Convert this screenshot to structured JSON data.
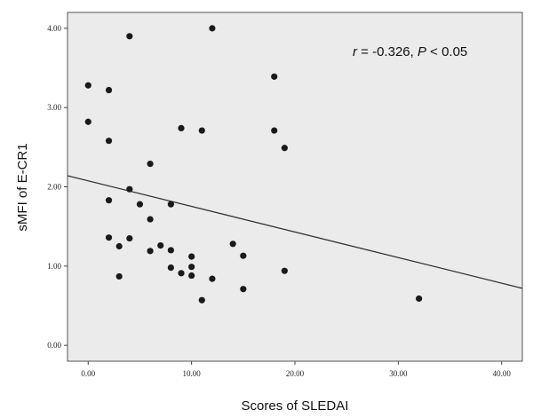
{
  "chart_data": {
    "type": "scatter",
    "xlabel": "Scores of SLEDAI",
    "ylabel": "sMFI of E-CR1",
    "xlim": [
      -2,
      42
    ],
    "ylim": [
      -0.2,
      4.2
    ],
    "xticks": [
      0,
      10,
      20,
      30,
      40
    ],
    "yticks": [
      0,
      1,
      2,
      3,
      4
    ],
    "xtick_labels": [
      "0.00",
      "10.00",
      "20.00",
      "30.00",
      "40.00"
    ],
    "ytick_labels": [
      "0.00",
      "1.00",
      "2.00",
      "3.00",
      "4.00"
    ],
    "grid": false,
    "plot_background": "#ebebeb",
    "point_color": "#1a1a1a",
    "annotation": {
      "r_symbol": "r",
      "r_text": " = -0.326, ",
      "p_symbol": "P",
      "p_text": " < 0.05"
    },
    "fit_line": {
      "x": [
        -2,
        42
      ],
      "y": [
        2.14,
        0.72
      ]
    },
    "points": [
      [
        0,
        3.28
      ],
      [
        0,
        2.82
      ],
      [
        2,
        3.22
      ],
      [
        2,
        2.58
      ],
      [
        2,
        1.83
      ],
      [
        2,
        1.36
      ],
      [
        3,
        1.25
      ],
      [
        3,
        0.87
      ],
      [
        4,
        3.9
      ],
      [
        4,
        1.97
      ],
      [
        4,
        1.35
      ],
      [
        5,
        1.78
      ],
      [
        6,
        2.29
      ],
      [
        6,
        1.59
      ],
      [
        6,
        1.19
      ],
      [
        7,
        1.26
      ],
      [
        8,
        1.78
      ],
      [
        8,
        1.2
      ],
      [
        8,
        0.98
      ],
      [
        9,
        2.74
      ],
      [
        9,
        0.91
      ],
      [
        10,
        1.12
      ],
      [
        10,
        0.99
      ],
      [
        10,
        0.88
      ],
      [
        11,
        2.71
      ],
      [
        11,
        0.57
      ],
      [
        12,
        4.0
      ],
      [
        12,
        0.84
      ],
      [
        14,
        1.28
      ],
      [
        15,
        1.13
      ],
      [
        15,
        0.71
      ],
      [
        18,
        3.39
      ],
      [
        18,
        2.71
      ],
      [
        19,
        2.49
      ],
      [
        19,
        0.94
      ],
      [
        32,
        0.59
      ]
    ]
  }
}
